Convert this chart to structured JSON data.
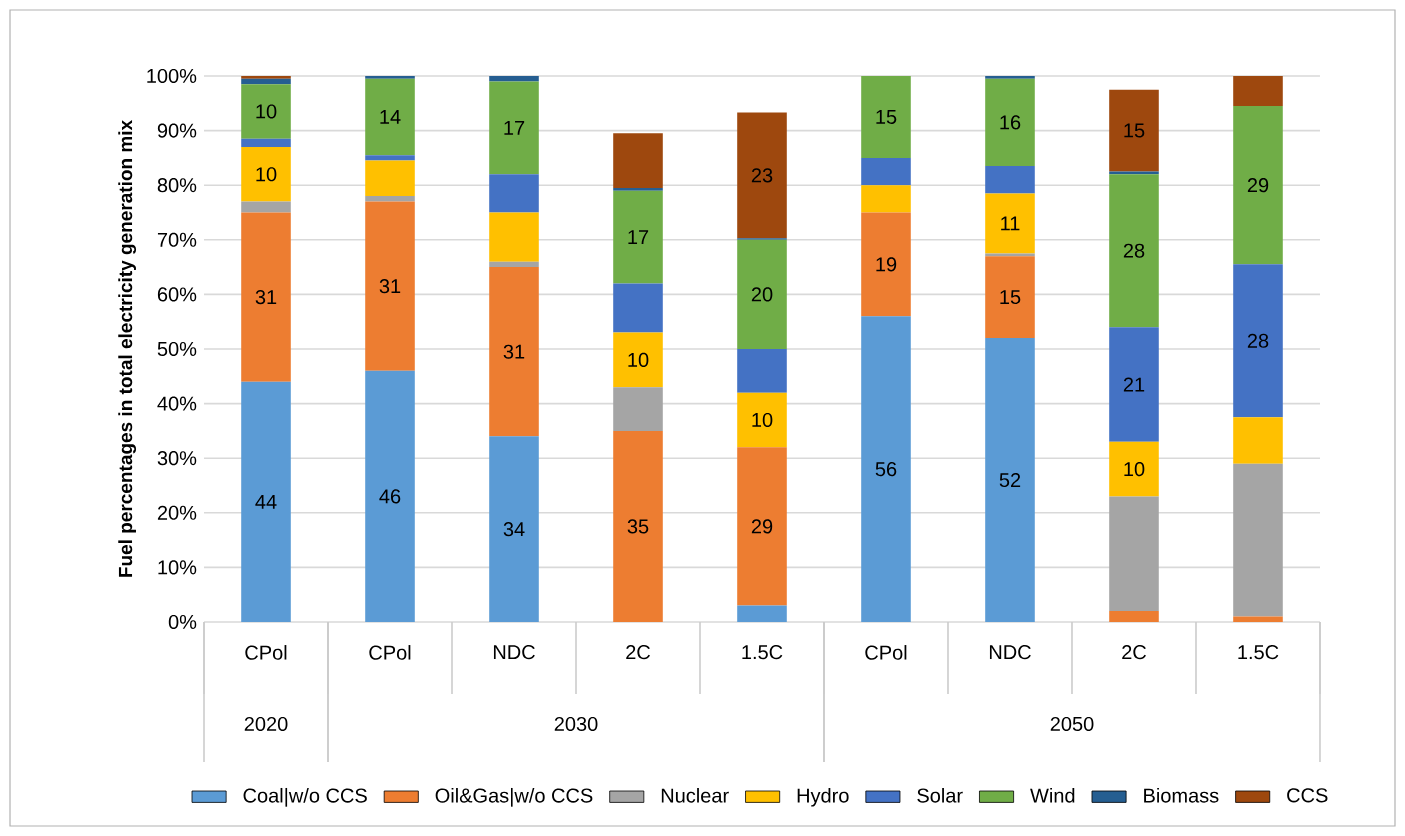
{
  "chart_data": {
    "type": "bar",
    "stacked": true,
    "ylabel": "Fuel percentages in total electricity generation mix",
    "categories": [
      "CPol",
      "CPol",
      "NDC",
      "2C",
      "1.5C",
      "CPol",
      "NDC",
      "2C",
      "1.5C"
    ],
    "annotations": [
      "2020",
      "2030",
      "2050"
    ],
    "series": [
      {
        "name": "Coal|w/o CCS",
        "color": "#5b9bd5",
        "values": [
          44,
          46,
          34,
          0,
          3,
          56,
          52,
          0,
          0
        ],
        "value_labels": [
          "44",
          "46",
          "34",
          null,
          null,
          "56",
          "52",
          null,
          null
        ]
      },
      {
        "name": "Oil&Gas|w/o CCS",
        "color": "#ed7d31",
        "values": [
          31,
          31,
          31,
          35,
          29,
          19,
          15,
          2,
          1
        ],
        "value_labels": [
          "31",
          "31",
          "31",
          "35",
          "29",
          "19",
          "15",
          null,
          null
        ]
      },
      {
        "name": "Nuclear",
        "color": "#a5a5a5",
        "values": [
          2,
          1,
          1,
          8,
          0,
          0,
          0.5,
          21,
          28
        ]
      },
      {
        "name": "Hydro",
        "color": "#ffc000",
        "values": [
          10,
          6.5,
          9,
          10,
          10,
          5,
          11,
          10,
          8.5
        ],
        "value_labels": [
          "10",
          null,
          null,
          "10",
          "10",
          null,
          "11",
          "10",
          null
        ]
      },
      {
        "name": "Solar",
        "color": "#4472c4",
        "values": [
          1.5,
          1,
          7,
          9,
          8,
          5,
          5,
          21,
          28
        ],
        "value_labels": [
          null,
          null,
          null,
          null,
          null,
          null,
          null,
          "21",
          "28"
        ]
      },
      {
        "name": "Wind",
        "color": "#70ad47",
        "values": [
          10,
          14,
          17,
          17,
          20,
          15,
          16,
          28,
          29
        ],
        "value_labels": [
          "10",
          "14",
          "17",
          "17",
          "20",
          "15",
          "16",
          "28",
          "29"
        ]
      },
      {
        "name": "Biomass",
        "color": "#255e91",
        "values": [
          1,
          0.5,
          1,
          0.5,
          0.3,
          0,
          0.5,
          0.5,
          0
        ]
      },
      {
        "name": "CCS",
        "color": "#9e480e",
        "values": [
          0.5,
          0,
          0,
          10,
          23,
          0,
          0,
          15,
          5.5
        ],
        "value_labels": [
          null,
          null,
          null,
          null,
          "23",
          null,
          null,
          "15",
          null
        ]
      }
    ],
    "ylim": [
      0,
      100
    ],
    "yticks": [
      {
        "value": 0,
        "label": "0%"
      },
      {
        "value": 10,
        "label": "10%"
      },
      {
        "value": 20,
        "label": "20%"
      },
      {
        "value": 30,
        "label": "30%"
      },
      {
        "value": 40,
        "label": "40%"
      },
      {
        "value": 50,
        "label": "50%"
      },
      {
        "value": 60,
        "label": "60%"
      },
      {
        "value": 70,
        "label": "70%"
      },
      {
        "value": 80,
        "label": "80%"
      },
      {
        "value": 90,
        "label": "90%"
      },
      {
        "value": 100,
        "label": "100%"
      }
    ],
    "grid": "y",
    "legend": "bottom"
  }
}
